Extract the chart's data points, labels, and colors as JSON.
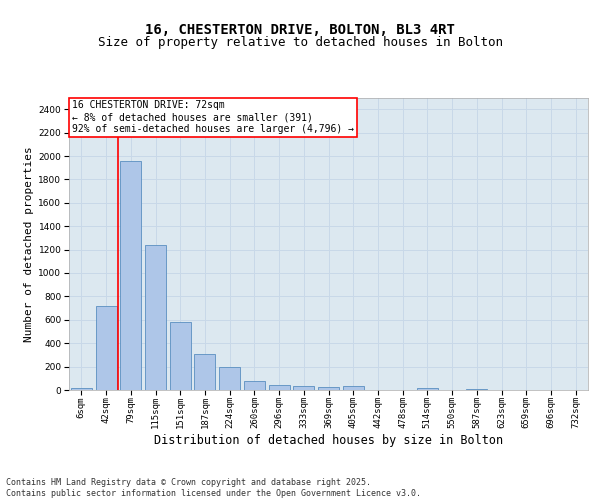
{
  "title_line1": "16, CHESTERTON DRIVE, BOLTON, BL3 4RT",
  "title_line2": "Size of property relative to detached houses in Bolton",
  "xlabel": "Distribution of detached houses by size in Bolton",
  "ylabel": "Number of detached properties",
  "bar_labels": [
    "6sqm",
    "42sqm",
    "79sqm",
    "115sqm",
    "151sqm",
    "187sqm",
    "224sqm",
    "260sqm",
    "296sqm",
    "333sqm",
    "369sqm",
    "405sqm",
    "442sqm",
    "478sqm",
    "514sqm",
    "550sqm",
    "587sqm",
    "623sqm",
    "659sqm",
    "696sqm",
    "732sqm"
  ],
  "bar_values": [
    15,
    720,
    1960,
    1240,
    580,
    305,
    200,
    75,
    40,
    30,
    25,
    30,
    0,
    0,
    18,
    0,
    12,
    0,
    0,
    0,
    0
  ],
  "bar_color": "#aec6e8",
  "bar_edge_color": "#5a8fc0",
  "grid_color": "#c8d8e8",
  "background_color": "#dce8f0",
  "annotation_text": "16 CHESTERTON DRIVE: 72sqm\n← 8% of detached houses are smaller (391)\n92% of semi-detached houses are larger (4,796) →",
  "annotation_box_color": "white",
  "annotation_box_edge": "red",
  "vline_x": 1.5,
  "vline_color": "red",
  "ylim": [
    0,
    2500
  ],
  "yticks": [
    0,
    200,
    400,
    600,
    800,
    1000,
    1200,
    1400,
    1600,
    1800,
    2000,
    2200,
    2400
  ],
  "footer_text": "Contains HM Land Registry data © Crown copyright and database right 2025.\nContains public sector information licensed under the Open Government Licence v3.0.",
  "title_fontsize": 10,
  "subtitle_fontsize": 9,
  "axis_label_fontsize": 8,
  "tick_fontsize": 6.5,
  "footer_fontsize": 6,
  "annotation_fontsize": 7
}
